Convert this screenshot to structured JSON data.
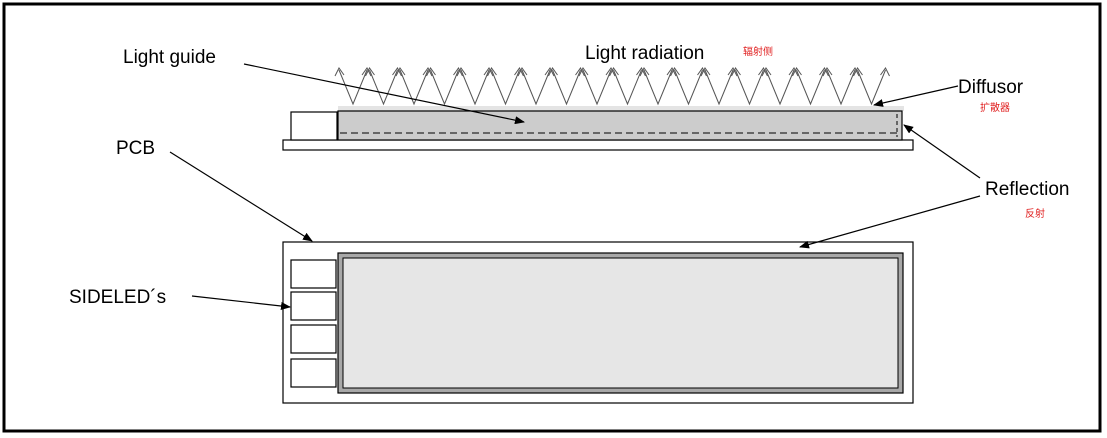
{
  "labels": {
    "light_guide": "Light guide",
    "light_radiation": "Light radiation",
    "light_radiation_cn": "辐射侧",
    "diffusor": "Diffusor",
    "diffusor_cn": "扩散器",
    "pcb": "PCB",
    "reflection": "Reflection",
    "reflection_cn": "反射",
    "sideleds": "SIDELED´s"
  },
  "colors": {
    "annotation_cn": "#e02020",
    "light_guide_fill": "#cccccc",
    "display_fill": "#e6e6e6",
    "frame": "#000000"
  }
}
